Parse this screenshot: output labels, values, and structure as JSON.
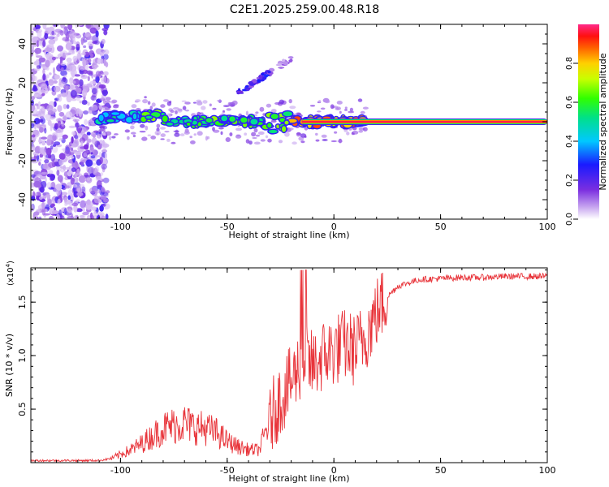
{
  "title": "C2E1.2025.259.00.48.R18",
  "chart_data": [
    {
      "type": "heatmap",
      "title": "C2E1.2025.259.00.48.R18",
      "xlabel": "Height of straight line (km)",
      "ylabel": "Frequency (Hz)",
      "xlim": [
        -142,
        100
      ],
      "ylim": [
        -50,
        50
      ],
      "xticks": [
        -100,
        -50,
        0,
        50,
        100
      ],
      "yticks": [
        -40,
        -20,
        0,
        20,
        40
      ],
      "colorbar": {
        "label": "Normalized spectral amplitude",
        "range": [
          0,
          1
        ],
        "ticks": [
          "0.0",
          "0.2",
          "0.4",
          "0.6",
          "0.8"
        ],
        "tick_values": [
          0,
          0.2,
          0.4,
          0.6,
          0.8
        ]
      },
      "features": {
        "noise_region_x": [
          -142,
          -107
        ],
        "main_line": {
          "x": [
            -110,
            100
          ],
          "freq_hz": 0,
          "note": "strong line ~0 Hz, amplitude ~1.0 from -15 km to 100 km"
        },
        "upper_branch": {
          "x": [
            -45,
            -20
          ],
          "freq_hz": [
            15,
            33
          ]
        }
      }
    },
    {
      "type": "line",
      "xlabel": "Height of straight line (km)",
      "ylabel": "SNR (10 * v/v)",
      "y_multiplier": "(x10",
      "y_multiplier_exp": "4",
      "y_multiplier_close": ")",
      "xlim": [
        -142,
        100
      ],
      "ylim": [
        0,
        1.82
      ],
      "xticks": [
        -100,
        -50,
        0,
        50,
        100
      ],
      "yticks": [
        0.5,
        1.0,
        1.5
      ],
      "ytick_labels": [
        "0.5",
        "1.0",
        "1.5"
      ],
      "series": [
        {
          "name": "SNR",
          "color": "#e8343a",
          "x": [
            -142,
            -110,
            -104,
            -100,
            -95,
            -90,
            -85,
            -80,
            -75,
            -70,
            -65,
            -60,
            -55,
            -50,
            -45,
            -40,
            -35,
            -30,
            -25,
            -20,
            -15,
            -10,
            -5,
            0,
            5,
            10,
            15,
            20,
            25,
            30,
            40,
            50,
            60,
            70,
            80,
            90,
            100
          ],
          "y": [
            0.02,
            0.02,
            0.04,
            0.08,
            0.12,
            0.18,
            0.25,
            0.32,
            0.35,
            0.37,
            0.33,
            0.32,
            0.28,
            0.2,
            0.15,
            0.12,
            0.12,
            0.4,
            0.6,
            0.75,
            0.95,
            0.9,
            1.0,
            1.05,
            1.1,
            1.05,
            1.2,
            1.4,
            1.55,
            1.65,
            1.71,
            1.72,
            1.73,
            1.73,
            1.74,
            1.74,
            1.74
          ]
        }
      ]
    }
  ]
}
